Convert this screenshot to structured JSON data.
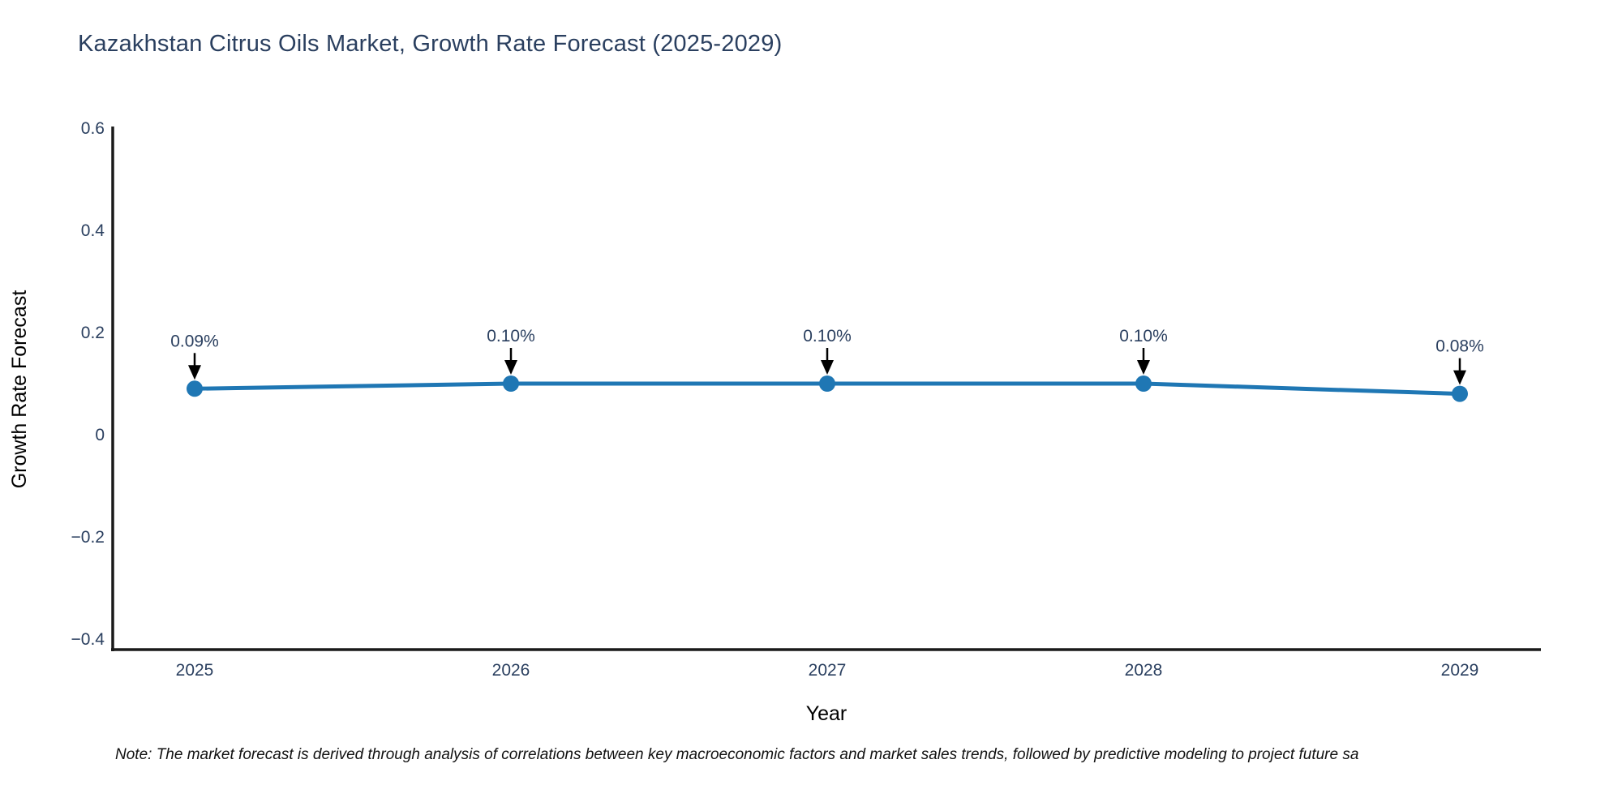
{
  "title": "Kazakhstan Citrus Oils Market, Growth Rate Forecast (2025-2029)",
  "note": "Note: The market forecast is derived through analysis of correlations between key macroeconomic factors and market sales trends, followed by predictive modeling to project future sa",
  "colors": {
    "line": "#1f77b4",
    "marker": "#1f77b4",
    "text": "#2a3f5f",
    "axis": "#1a1a1a",
    "annotation_text": "#2a3f5f",
    "annotation_arrow": "#000000",
    "background": "#ffffff"
  },
  "chart_data": {
    "type": "line",
    "title": "Kazakhstan Citrus Oils Market, Growth Rate Forecast (2025-2029)",
    "xlabel": "Year",
    "ylabel": "Growth Rate Forecast",
    "categories": [
      "2025",
      "2026",
      "2027",
      "2028",
      "2029"
    ],
    "values": [
      0.09,
      0.1,
      0.1,
      0.1,
      0.08
    ],
    "point_labels": [
      "0.09%",
      "0.10%",
      "0.10%",
      "0.10%",
      "0.08%"
    ],
    "series": [
      {
        "name": "Growth Rate Forecast",
        "values": [
          0.09,
          0.1,
          0.1,
          0.1,
          0.08
        ]
      }
    ],
    "yticks": [
      0.6,
      0.4,
      0.2,
      0,
      -0.2,
      -0.4
    ],
    "ytick_labels": [
      "0.6",
      "0.4",
      "0.2",
      "0",
      "−0.2",
      "−0.4"
    ],
    "ylim": [
      -0.42,
      0.6
    ],
    "grid": false,
    "legend": "none",
    "marker_style": "circle",
    "annotation_style": "value-label-with-down-arrow"
  }
}
